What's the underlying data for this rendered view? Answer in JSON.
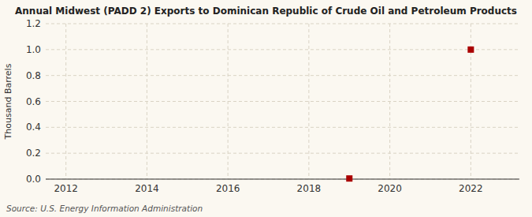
{
  "chart_data": {
    "type": "scatter",
    "title": "Annual Midwest (PADD 2) Exports to Dominican Republic of Crude Oil and Petroleum Products",
    "y_label": "Thousand Barrels",
    "source": "Source: U.S. Energy Information Administration",
    "x": [
      2019,
      2022
    ],
    "values": [
      0.005,
      1.0
    ],
    "color": "#aa0000",
    "marker": "square",
    "xlim": [
      2011.5,
      2023.2
    ],
    "ylim": [
      0.0,
      1.2
    ],
    "xticks": [
      2012,
      2014,
      2016,
      2018,
      2020,
      2022
    ],
    "yticks": [
      {
        "value": 0.0,
        "label": "0.0"
      },
      0.2,
      0.4,
      0.6,
      0.8,
      {
        "value": 1.0,
        "label": "1.0"
      },
      1.2
    ],
    "grid": true
  }
}
